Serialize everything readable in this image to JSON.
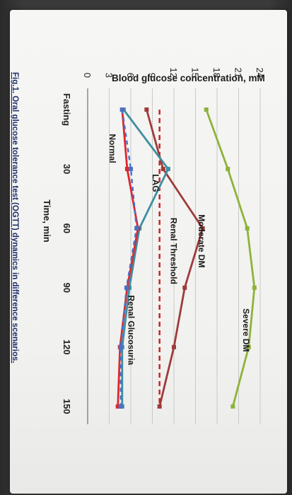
{
  "chart_data": {
    "type": "line",
    "xlabel": "Time, min",
    "ylabel": "Blood glucose concentration, mM",
    "x_ticks": [
      "Fasting",
      "30",
      "60",
      "90",
      "120",
      "150"
    ],
    "x": [
      0,
      30,
      60,
      90,
      120,
      150
    ],
    "ylim": [
      0,
      24
    ],
    "y_ticks": [
      "0",
      "3",
      "6",
      "9",
      "12",
      "15",
      "18",
      "21",
      "24"
    ],
    "grid": true,
    "threshold": {
      "label": "Renal Threshold",
      "value": 10
    },
    "annotations": [
      "Severe DM",
      "Moderate DM",
      "LAG",
      "Renal Glucosuria",
      "Normal"
    ],
    "series": [
      {
        "color": "#8db33a",
        "values": [
          16.5,
          19.5,
          22.2,
          23.2,
          22.4,
          20.2
        ]
      },
      {
        "color": "#9e3a3a",
        "values": [
          8.2,
          10.5,
          16.0,
          13.5,
          12.0,
          10.0
        ]
      },
      {
        "color": "#3c8fa0",
        "values": [
          5.0,
          11.2,
          7.2,
          5.8,
          4.8,
          4.8
        ]
      },
      {
        "color": "#e0262b",
        "values": [
          4.8,
          5.5,
          7.0,
          5.5,
          4.5,
          4.2
        ]
      },
      {
        "color": "#4a70c8",
        "values": [
          4.8,
          6.0,
          6.8,
          5.4,
          4.6,
          4.6
        ],
        "dashed": true
      }
    ]
  },
  "caption": "Fig.1. Oral glucose tolerance test (OGTT) dynamics in difference scenarios."
}
